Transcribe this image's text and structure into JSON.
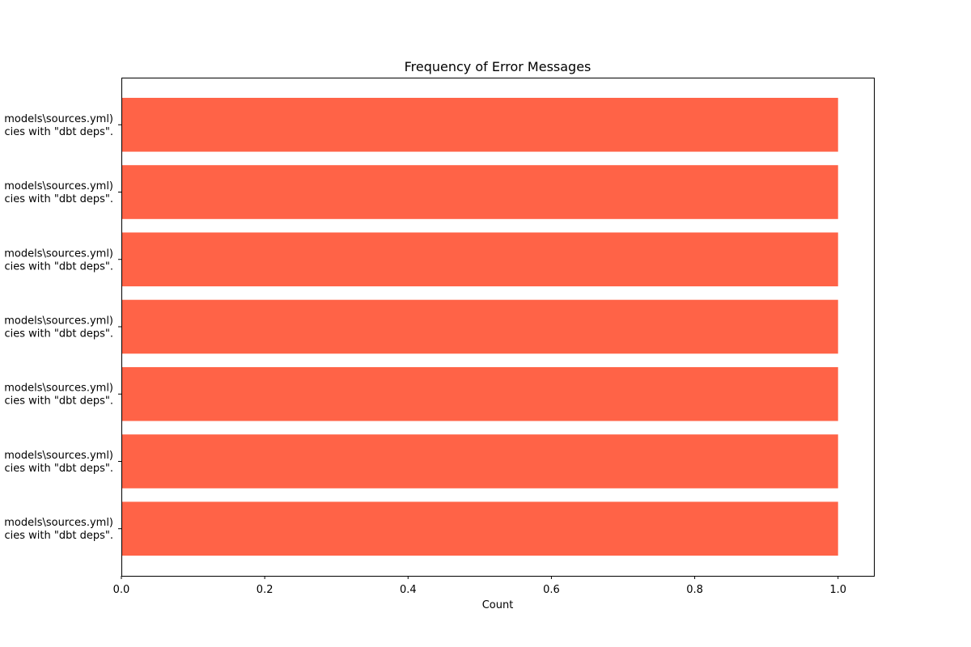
{
  "chart_data": {
    "type": "bar",
    "orientation": "horizontal",
    "title": "Frequency of Error Messages",
    "xlabel": "Count",
    "ylabel": "",
    "xlim": [
      0,
      1.05
    ],
    "xticks": [
      0.0,
      0.2,
      0.4,
      0.6,
      0.8,
      1.0
    ],
    "xtick_labels": [
      "0.0",
      "0.2",
      "0.4",
      "0.6",
      "0.8",
      "1.0"
    ],
    "bar_color": "#ff6347",
    "grid": false,
    "categories": [
      [
        "models\\sources.yml)",
        "cies with \"dbt deps\"."
      ],
      [
        "models\\sources.yml)",
        "cies with \"dbt deps\"."
      ],
      [
        "models\\sources.yml)",
        "cies with \"dbt deps\"."
      ],
      [
        "models\\sources.yml)",
        "cies with \"dbt deps\"."
      ],
      [
        "models\\sources.yml)",
        "cies with \"dbt deps\"."
      ],
      [
        "models\\sources.yml)",
        "cies with \"dbt deps\"."
      ],
      [
        "models\\sources.yml)",
        "cies with \"dbt deps\"."
      ]
    ],
    "values": [
      1,
      1,
      1,
      1,
      1,
      1,
      1
    ]
  }
}
